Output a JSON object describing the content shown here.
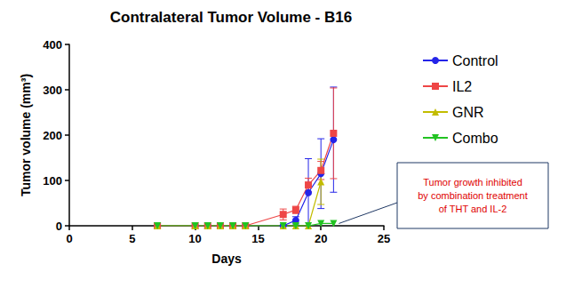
{
  "chart_data": {
    "type": "line",
    "title": "Contralateral Tumor Volume - B16",
    "x_label": "Days",
    "y_label": "Tumor volume (mm³)",
    "xlim": [
      0,
      25
    ],
    "xticks": [
      0,
      5,
      10,
      15,
      20,
      25
    ],
    "ylim": [
      0,
      400
    ],
    "yticks": [
      0,
      100,
      200,
      300,
      400
    ],
    "grid": false,
    "legend": "right",
    "x": [
      7,
      10,
      11,
      12,
      13,
      14,
      17,
      18,
      19,
      20,
      21
    ],
    "series": [
      {
        "name": "Control",
        "color": "#2424e8",
        "marker": "circle",
        "values": [
          0,
          0,
          0,
          0,
          0,
          0,
          0,
          12,
          73,
          115,
          190
        ],
        "errors": [
          0,
          0,
          0,
          0,
          0,
          0,
          0,
          8,
          75,
          77,
          116
        ]
      },
      {
        "name": "IL2",
        "color": "#ee4646",
        "marker": "square",
        "values": [
          0,
          0,
          0,
          0,
          0,
          0,
          25,
          35,
          90,
          122,
          204
        ],
        "errors": [
          0,
          0,
          0,
          0,
          0,
          0,
          12,
          8,
          15,
          20,
          100
        ]
      },
      {
        "name": "GNR",
        "color": "#c2bc00",
        "marker": "triangle",
        "values": [
          0,
          0,
          0,
          0,
          0,
          0,
          0,
          0,
          0,
          97,
          null
        ],
        "errors": [
          0,
          0,
          0,
          0,
          0,
          0,
          0,
          0,
          0,
          50,
          null
        ]
      },
      {
        "name": "Combo",
        "color": "#22c322",
        "marker": "triangle-down",
        "values": [
          0,
          0,
          0,
          0,
          0,
          0,
          0,
          0,
          0,
          5,
          5
        ],
        "errors": [
          0,
          0,
          0,
          0,
          0,
          0,
          0,
          0,
          0,
          0,
          0
        ]
      }
    ],
    "annotations": [
      {
        "text": "Tumor growth inhibited\nby combination treatment\nof THT and IL-2",
        "color": "#e00000"
      }
    ]
  }
}
